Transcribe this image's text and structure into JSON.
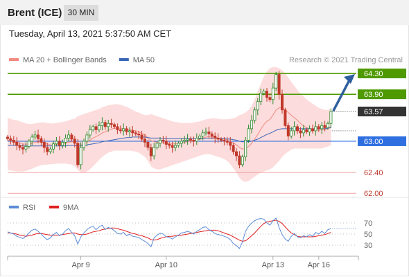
{
  "header": {
    "instrument": "Brent (ICE)",
    "interval": "30 MIN"
  },
  "datetime": "Tuesday, April 13, 2021 5:37:50 AM CET",
  "copyright": "Research © 2021 Trading Central",
  "colors": {
    "up_candle": "#2e8b2e",
    "down_candle": "#c0392b",
    "bollinger_fill": "#fbd6d6",
    "ma20": "#f28b82",
    "ma50": "#3a66b8",
    "resistance": "#4f9a00",
    "support": "#f0a0a0",
    "pivot": "#2f6fe0",
    "current": "#333333",
    "arrow": "#2f5f9e",
    "rsi": "#5b8bd6",
    "rsi_ma": "#e01f1f"
  },
  "chart_data": [
    {
      "type": "candlestick",
      "legend": [
        {
          "name": "MA 20 + Bollinger Bands",
          "color": "#f28b82"
        },
        {
          "name": "MA 50",
          "color": "#3a66b8"
        }
      ],
      "x_ticks": [
        {
          "label": "Apr 9",
          "index": 24
        },
        {
          "label": "Apr 10",
          "index": 52
        },
        {
          "label": "Apr 13",
          "index": 87
        },
        {
          "label": "Apr 16",
          "index": 102
        }
      ],
      "y_range": [
        61.95,
        64.42
      ],
      "levels": [
        {
          "label": "64.30",
          "value": 64.3,
          "kind": "resistance"
        },
        {
          "label": "63.90",
          "value": 63.9,
          "kind": "resistance"
        },
        {
          "label": "63.57",
          "value": 63.57,
          "kind": "current"
        },
        {
          "label": "63.00",
          "value": 63.0,
          "kind": "pivot"
        },
        {
          "label": "62.40",
          "value": 62.4,
          "kind": "support"
        },
        {
          "label": "62.00",
          "value": 62.0,
          "kind": "support"
        }
      ],
      "close": [
        63.05,
        63.02,
        62.98,
        62.92,
        62.88,
        62.85,
        62.9,
        63.0,
        63.08,
        63.12,
        63.05,
        62.98,
        62.88,
        62.8,
        62.85,
        62.95,
        63.0,
        62.92,
        62.98,
        63.06,
        63.12,
        63.04,
        62.96,
        62.55,
        62.88,
        63.0,
        63.12,
        63.22,
        63.28,
        63.22,
        63.3,
        63.36,
        63.28,
        63.34,
        63.32,
        63.28,
        63.22,
        63.2,
        63.24,
        63.18,
        63.2,
        63.16,
        63.14,
        63.12,
        63.04,
        62.98,
        62.88,
        62.72,
        62.88,
        62.96,
        63.02,
        63.0,
        62.94,
        62.92,
        62.88,
        62.92,
        62.96,
        63.0,
        63.02,
        63.04,
        63.02,
        63.0,
        63.06,
        63.1,
        63.16,
        63.18,
        63.14,
        63.1,
        63.06,
        63.04,
        63.02,
        63.0,
        62.98,
        62.92,
        62.8,
        62.72,
        62.55,
        62.7,
        63.02,
        63.24,
        63.4,
        63.6,
        63.76,
        63.92,
        63.96,
        63.84,
        63.8,
        64.02,
        64.28,
        63.9,
        63.6,
        63.3,
        63.1,
        63.2,
        63.28,
        63.2,
        63.16,
        63.22,
        63.18,
        63.24,
        63.2,
        63.28,
        63.24,
        63.3,
        63.26,
        63.34,
        63.57
      ],
      "ma20": [
        63.02,
        63.01,
        63.0,
        62.99,
        62.97,
        62.95,
        62.94,
        62.95,
        62.96,
        62.98,
        62.99,
        62.99,
        62.97,
        62.95,
        62.93,
        62.93,
        62.94,
        62.94,
        62.95,
        62.96,
        62.98,
        62.99,
        62.99,
        62.95,
        62.94,
        62.95,
        62.98,
        63.02,
        63.06,
        63.09,
        63.12,
        63.16,
        63.18,
        63.21,
        63.23,
        63.25,
        63.25,
        63.25,
        63.24,
        63.23,
        63.22,
        63.21,
        63.2,
        63.18,
        63.15,
        63.12,
        63.07,
        63.01,
        62.99,
        62.98,
        62.98,
        62.97,
        62.96,
        62.95,
        62.95,
        62.95,
        62.96,
        62.97,
        62.98,
        62.99,
        63.0,
        63.01,
        63.02,
        63.04,
        63.06,
        63.08,
        63.09,
        63.09,
        63.08,
        63.06,
        63.05,
        63.04,
        63.02,
        63.0,
        62.97,
        62.93,
        62.88,
        62.85,
        62.86,
        62.9,
        62.96,
        63.04,
        63.13,
        63.23,
        63.32,
        63.38,
        63.42,
        63.5,
        63.6,
        63.64,
        63.64,
        63.6,
        63.55,
        63.5,
        63.45,
        63.4,
        63.34,
        63.3,
        63.26,
        63.24,
        63.22,
        63.22,
        63.21,
        63.22,
        63.22,
        63.24,
        63.28
      ],
      "bb_upper": [
        63.45,
        63.43,
        63.41,
        63.4,
        63.38,
        63.36,
        63.34,
        63.33,
        63.33,
        63.34,
        63.35,
        63.36,
        63.36,
        63.35,
        63.34,
        63.34,
        63.35,
        63.36,
        63.37,
        63.38,
        63.4,
        63.42,
        63.43,
        63.48,
        63.5,
        63.52,
        63.54,
        63.56,
        63.58,
        63.6,
        63.62,
        63.65,
        63.67,
        63.69,
        63.7,
        63.71,
        63.71,
        63.7,
        63.68,
        63.66,
        63.63,
        63.6,
        63.57,
        63.55,
        63.52,
        63.5,
        63.5,
        63.52,
        63.5,
        63.48,
        63.46,
        63.44,
        63.42,
        63.4,
        63.38,
        63.37,
        63.36,
        63.35,
        63.35,
        63.35,
        63.35,
        63.36,
        63.37,
        63.38,
        63.4,
        63.42,
        63.43,
        63.44,
        63.44,
        63.43,
        63.42,
        63.42,
        63.42,
        63.43,
        63.44,
        63.46,
        63.5,
        63.52,
        63.55,
        63.6,
        63.68,
        63.8,
        63.95,
        64.1,
        64.24,
        64.34,
        64.4,
        64.42,
        64.42,
        64.4,
        64.36,
        64.3,
        64.22,
        64.14,
        64.06,
        63.98,
        63.92,
        63.86,
        63.8,
        63.76,
        63.72,
        63.68,
        63.64,
        63.62,
        63.6,
        63.6,
        63.62
      ],
      "bb_lower": [
        62.45,
        62.44,
        62.43,
        62.42,
        62.42,
        62.42,
        62.43,
        62.45,
        62.47,
        62.5,
        62.52,
        62.54,
        62.55,
        62.55,
        62.56,
        62.56,
        62.57,
        62.57,
        62.57,
        62.57,
        62.56,
        62.55,
        62.52,
        62.45,
        62.4,
        62.4,
        62.42,
        62.46,
        62.52,
        62.58,
        62.64,
        62.7,
        62.74,
        62.78,
        62.8,
        62.82,
        62.82,
        62.82,
        62.82,
        62.82,
        62.82,
        62.81,
        62.8,
        62.78,
        62.74,
        62.7,
        62.62,
        62.52,
        62.48,
        62.46,
        62.46,
        62.48,
        62.5,
        62.52,
        62.54,
        62.56,
        62.58,
        62.6,
        62.62,
        62.64,
        62.66,
        62.68,
        62.7,
        62.72,
        62.74,
        62.75,
        62.75,
        62.74,
        62.72,
        62.7,
        62.68,
        62.66,
        62.62,
        62.56,
        62.48,
        62.4,
        62.3,
        62.24,
        62.22,
        62.24,
        62.28,
        62.32,
        62.36,
        62.4,
        62.42,
        62.44,
        62.46,
        62.5,
        62.56,
        62.62,
        62.7,
        62.76,
        62.8,
        62.84,
        62.86,
        62.86,
        62.86,
        62.86,
        62.86,
        62.86,
        62.86,
        62.86,
        62.86,
        62.86,
        62.88,
        62.9,
        62.92
      ],
      "ma50": [
        62.92,
        62.92,
        62.92,
        62.92,
        62.92,
        62.91,
        62.91,
        62.91,
        62.91,
        62.91,
        62.91,
        62.91,
        62.91,
        62.91,
        62.91,
        62.91,
        62.91,
        62.91,
        62.91,
        62.91,
        62.92,
        62.92,
        62.92,
        62.91,
        62.91,
        62.92,
        62.93,
        62.94,
        62.95,
        62.96,
        62.97,
        62.99,
        63.0,
        63.01,
        63.02,
        63.03,
        63.04,
        63.05,
        63.06,
        63.07,
        63.07,
        63.08,
        63.08,
        63.08,
        63.08,
        63.08,
        63.07,
        63.06,
        63.06,
        63.06,
        63.06,
        63.05,
        63.05,
        63.05,
        63.05,
        63.05,
        63.05,
        63.05,
        63.05,
        63.05,
        63.05,
        63.05,
        63.05,
        63.05,
        63.05,
        63.06,
        63.06,
        63.06,
        63.06,
        63.05,
        63.05,
        63.05,
        63.04,
        63.04,
        63.03,
        63.02,
        63.0,
        62.99,
        62.99,
        62.99,
        63.0,
        63.02,
        63.04,
        63.07,
        63.1,
        63.13,
        63.15,
        63.18,
        63.21,
        63.23,
        63.24,
        63.24,
        63.24,
        63.24,
        63.24,
        63.24,
        63.24,
        63.24,
        63.24,
        63.24,
        63.24,
        63.24,
        63.24,
        63.24,
        63.24,
        63.25,
        63.26
      ]
    },
    {
      "type": "line",
      "legend": [
        {
          "name": "RSI",
          "color": "#5b8bd6"
        },
        {
          "name": "9MA",
          "color": "#e01f1f"
        }
      ],
      "y_ticks": [
        {
          "label": "70",
          "value": 70
        },
        {
          "label": "50",
          "value": 50
        },
        {
          "label": "30",
          "value": 30
        }
      ],
      "y_range": [
        15,
        85
      ],
      "rsi": [
        54,
        52,
        50,
        46,
        44,
        42,
        46,
        52,
        57,
        59,
        55,
        50,
        44,
        40,
        43,
        49,
        53,
        47,
        50,
        56,
        60,
        53,
        47,
        32,
        45,
        52,
        58,
        62,
        64,
        58,
        63,
        66,
        58,
        62,
        60,
        56,
        51,
        50,
        53,
        47,
        50,
        46,
        45,
        44,
        40,
        37,
        33,
        27,
        43,
        48,
        52,
        50,
        45,
        44,
        41,
        45,
        48,
        52,
        53,
        55,
        53,
        50,
        55,
        58,
        62,
        63,
        58,
        55,
        51,
        49,
        48,
        46,
        44,
        40,
        33,
        29,
        24,
        36,
        55,
        64,
        70,
        74,
        77,
        78,
        77,
        70,
        66,
        74,
        79,
        62,
        49,
        41,
        37,
        46,
        51,
        45,
        43,
        47,
        45,
        49,
        46,
        53,
        50,
        55,
        51,
        58,
        60
      ],
      "ma9": [
        52,
        52,
        51,
        50,
        48,
        47,
        46,
        47,
        48,
        50,
        51,
        51,
        50,
        49,
        48,
        48,
        48,
        48,
        49,
        50,
        51,
        52,
        52,
        50,
        49,
        49,
        50,
        52,
        54,
        55,
        56,
        58,
        59,
        60,
        61,
        61,
        60,
        58,
        57,
        55,
        53,
        51,
        50,
        48,
        47,
        45,
        43,
        40,
        39,
        40,
        42,
        44,
        45,
        46,
        46,
        47,
        47,
        48,
        49,
        50,
        51,
        52,
        53,
        54,
        55,
        56,
        57,
        57,
        57,
        56,
        54,
        52,
        50,
        48,
        45,
        42,
        39,
        37,
        38,
        42,
        47,
        52,
        58,
        64,
        69,
        72,
        73,
        74,
        75,
        73,
        69,
        63,
        57,
        52,
        49,
        46,
        45,
        45,
        45,
        45,
        45,
        46,
        47,
        48,
        49,
        51,
        53
      ]
    }
  ]
}
